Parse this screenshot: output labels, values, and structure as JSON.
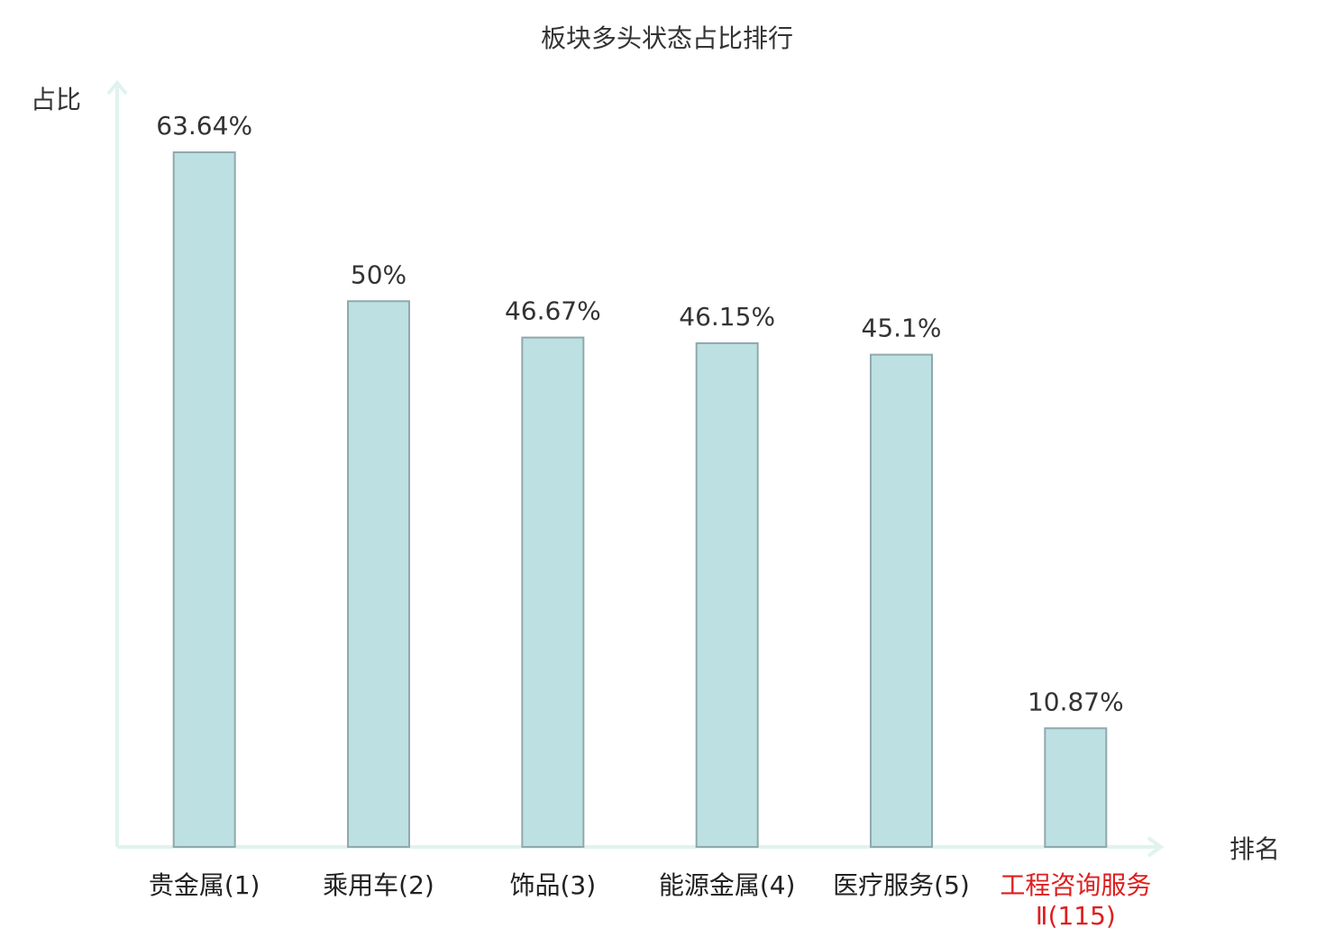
{
  "chart_data": {
    "type": "bar",
    "title": "板块多头状态占比排行",
    "y_label": "占比",
    "x_label": "排名",
    "categories": [
      "贵金属(1)",
      "乘用车(2)",
      "饰品(3)",
      "能源金属(4)",
      "医疗服务(5)",
      "工程咨询服务Ⅱ(115)"
    ],
    "category_colors": [
      "#222222",
      "#222222",
      "#222222",
      "#222222",
      "#222222",
      "#dd1f1f"
    ],
    "values": [
      63.64,
      50,
      46.67,
      46.15,
      45.1,
      10.87
    ],
    "value_labels": [
      "63.64%",
      "50%",
      "46.67%",
      "46.15%",
      "45.1%",
      "10.87%"
    ],
    "color": "#bde0e2",
    "edge_color": "#8fa9ab",
    "ylim": [
      0,
      70
    ]
  }
}
